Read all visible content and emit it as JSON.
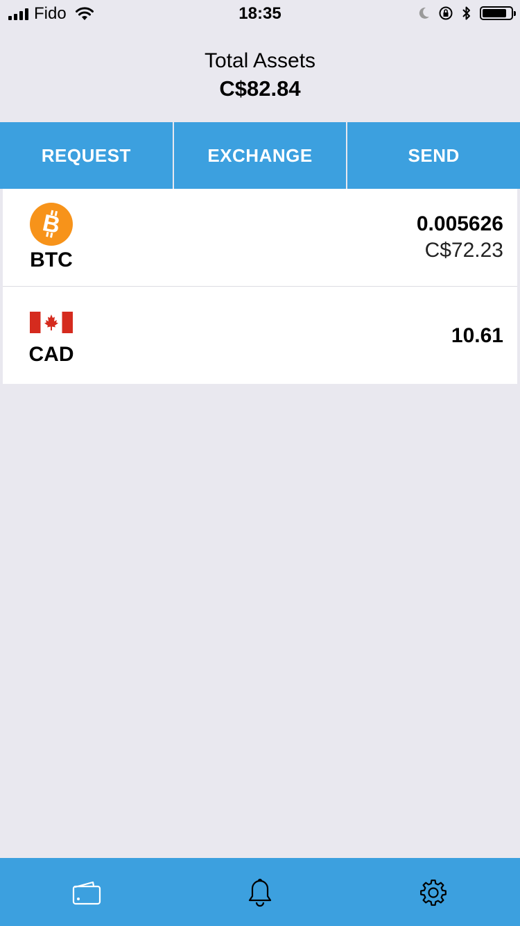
{
  "status_bar": {
    "carrier": "Fido",
    "time": "18:35",
    "battery_level": 0.85
  },
  "header": {
    "title": "Total Assets",
    "total": "C$82.84"
  },
  "actions": {
    "request_label": "REQUEST",
    "exchange_label": "EXCHANGE",
    "send_label": "SEND"
  },
  "assets": [
    {
      "symbol": "BTC",
      "icon": "bitcoin-icon",
      "amount": "0.005626",
      "fiat": "C$72.23"
    },
    {
      "symbol": "CAD",
      "icon": "canada-flag-icon",
      "amount": "10.61"
    }
  ],
  "tabbar": {
    "items": [
      "wallet-icon",
      "bell-icon",
      "gear-icon"
    ]
  },
  "colors": {
    "accent": "#3ca0df",
    "background": "#e9e8ef",
    "bitcoin": "#f7931a",
    "flag_red": "#d52b1e"
  }
}
